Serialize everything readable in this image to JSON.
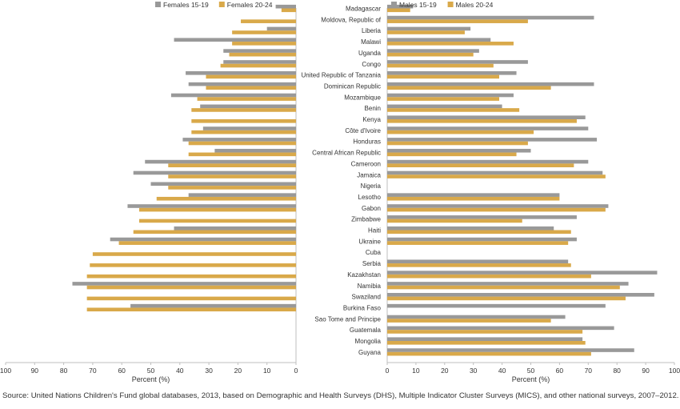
{
  "chart_data": [
    {
      "type": "bar",
      "orientation": "horizontal",
      "direction": "reversed",
      "xlabel": "Percent (%)",
      "xlim": [
        0,
        100
      ],
      "xticks": [
        "100",
        "90",
        "80",
        "70",
        "60",
        "50",
        "40",
        "30",
        "20",
        "10",
        "0"
      ],
      "legend_position": "top-right",
      "categories": [
        "Madagascar",
        "Moldova, Republic of",
        "Liberia",
        "Malawi",
        "Uganda",
        "Congo",
        "United Republic of Tanzania",
        "Dominican Republic",
        "Mozambique",
        "Benin",
        "Kenya",
        "Côte d'Ivoire",
        "Honduras",
        "Central African Republic",
        "Cameroon",
        "Jamaica",
        "Nigeria",
        "Lesotho",
        "Gabon",
        "Zimbabwe",
        "Haiti",
        "Ukraine",
        "Cuba",
        "Serbia",
        "Kazakhstan",
        "Namibia",
        "Swaziland",
        "Burkina Faso",
        "Sao Tome and Principe",
        "Guatemala",
        "Mongolia",
        "Guyana"
      ],
      "series": [
        {
          "name": "Females 15-19",
          "color": "#999999",
          "values": [
            7,
            null,
            10,
            42,
            25,
            25,
            38,
            37,
            43,
            33,
            0,
            32,
            39,
            28,
            52,
            56,
            50,
            37,
            58,
            0,
            42,
            64,
            0,
            0,
            0,
            77,
            0,
            57,
            0,
            0,
            0,
            0
          ]
        },
        {
          "name": "Females 20-24",
          "color": "#D9A94A",
          "values": [
            5,
            19,
            22,
            22,
            23,
            26,
            31,
            31,
            34,
            36,
            36,
            36,
            37,
            37,
            44,
            44,
            44,
            48,
            54,
            54,
            56,
            61,
            70,
            71,
            72,
            72,
            72,
            72,
            0,
            0,
            0,
            0
          ]
        }
      ]
    },
    {
      "type": "bar",
      "orientation": "horizontal",
      "xlabel": "Percent (%)",
      "xlim": [
        0,
        100
      ],
      "xticks": [
        "0",
        "10",
        "20",
        "30",
        "40",
        "50",
        "60",
        "70",
        "80",
        "90",
        "100"
      ],
      "legend_position": "top-left",
      "categories": [
        "Madagascar",
        "Moldova, Republic of",
        "Liberia",
        "Malawi",
        "Uganda",
        "Congo",
        "United Republic of Tanzania",
        "Dominican Republic",
        "Mozambique",
        "Benin",
        "Kenya",
        "Côte d'Ivoire",
        "Honduras",
        "Central African Republic",
        "Cameroon",
        "Jamaica",
        "Nigeria",
        "Lesotho",
        "Gabon",
        "Zimbabwe",
        "Haiti",
        "Ukraine",
        "Cuba",
        "Serbia",
        "Kazakhstan",
        "Namibia",
        "Swaziland",
        "Burkina Faso",
        "Sao Tome and Principe",
        "Guatemala",
        "Mongolia",
        "Guyana"
      ],
      "series": [
        {
          "name": "Males 15-19",
          "color": "#999999",
          "values": [
            9,
            72,
            29,
            36,
            32,
            49,
            45,
            72,
            44,
            40,
            69,
            70,
            73,
            50,
            70,
            75,
            0,
            60,
            77,
            66,
            58,
            66,
            0,
            63,
            94,
            84,
            93,
            76,
            62,
            79,
            68,
            86
          ]
        },
        {
          "name": "Males 20-24",
          "color": "#D9A94A",
          "values": [
            8,
            49,
            27,
            44,
            30,
            37,
            39,
            57,
            39,
            46,
            66,
            51,
            49,
            45,
            65,
            76,
            0,
            60,
            76,
            47,
            64,
            63,
            0,
            64,
            71,
            81,
            83,
            0,
            57,
            68,
            69,
            71
          ]
        }
      ]
    }
  ],
  "source_note": "Source: United Nations Children's Fund global databases, 2013, based on Demographic and Health Surveys (DHS), Multiple Indicator Cluster Surveys (MICS), and other national surveys, 2007–2012."
}
